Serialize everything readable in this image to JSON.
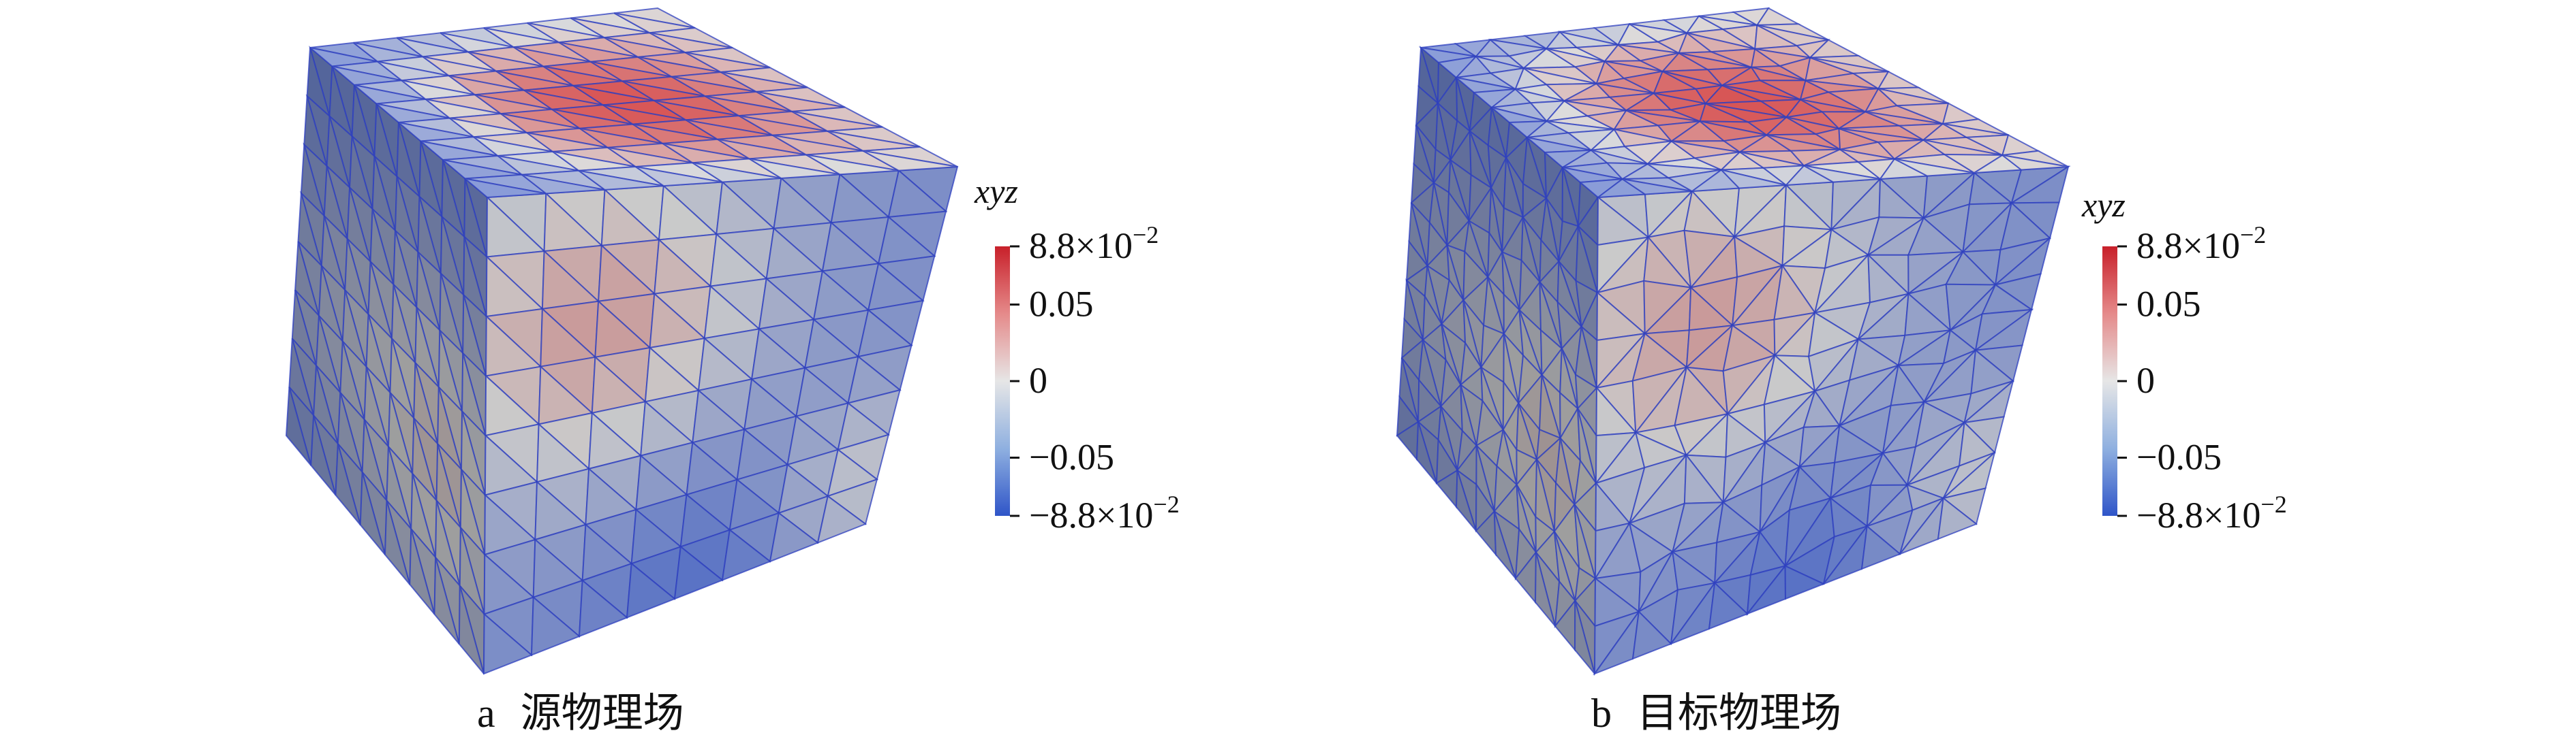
{
  "panels": [
    {
      "id": "a",
      "caption_letter": "a",
      "caption_text": "源物理场",
      "mesh": "structured",
      "colorbar": {
        "title": "xyz",
        "ticks": [
          {
            "base": "8.8",
            "exp": "−2",
            "prefix": "",
            "value": 0.088
          },
          {
            "text": "0.05",
            "value": 0.05
          },
          {
            "text": "0",
            "value": 0
          },
          {
            "text": "−0.05",
            "value": -0.05
          },
          {
            "base": "8.8",
            "exp": "−2",
            "prefix": "−",
            "value": -0.088
          }
        ]
      }
    },
    {
      "id": "b",
      "caption_letter": "b",
      "caption_text": "目标物理场",
      "mesh": "unstructured",
      "colorbar": {
        "title": "xyz",
        "ticks": [
          {
            "base": "8.8",
            "exp": "−2",
            "prefix": "",
            "value": 0.088
          },
          {
            "text": "0.05",
            "value": 0.05
          },
          {
            "text": "0",
            "value": 0
          },
          {
            "text": "−0.05",
            "value": -0.05
          },
          {
            "base": "8.8",
            "exp": "−2",
            "prefix": "−",
            "value": -0.088
          }
        ]
      }
    }
  ],
  "colormap": {
    "low": "#3b5fd4",
    "mid": "#dcdcdc",
    "high": "#d62a2a",
    "edge": "#2e3fbf"
  }
}
